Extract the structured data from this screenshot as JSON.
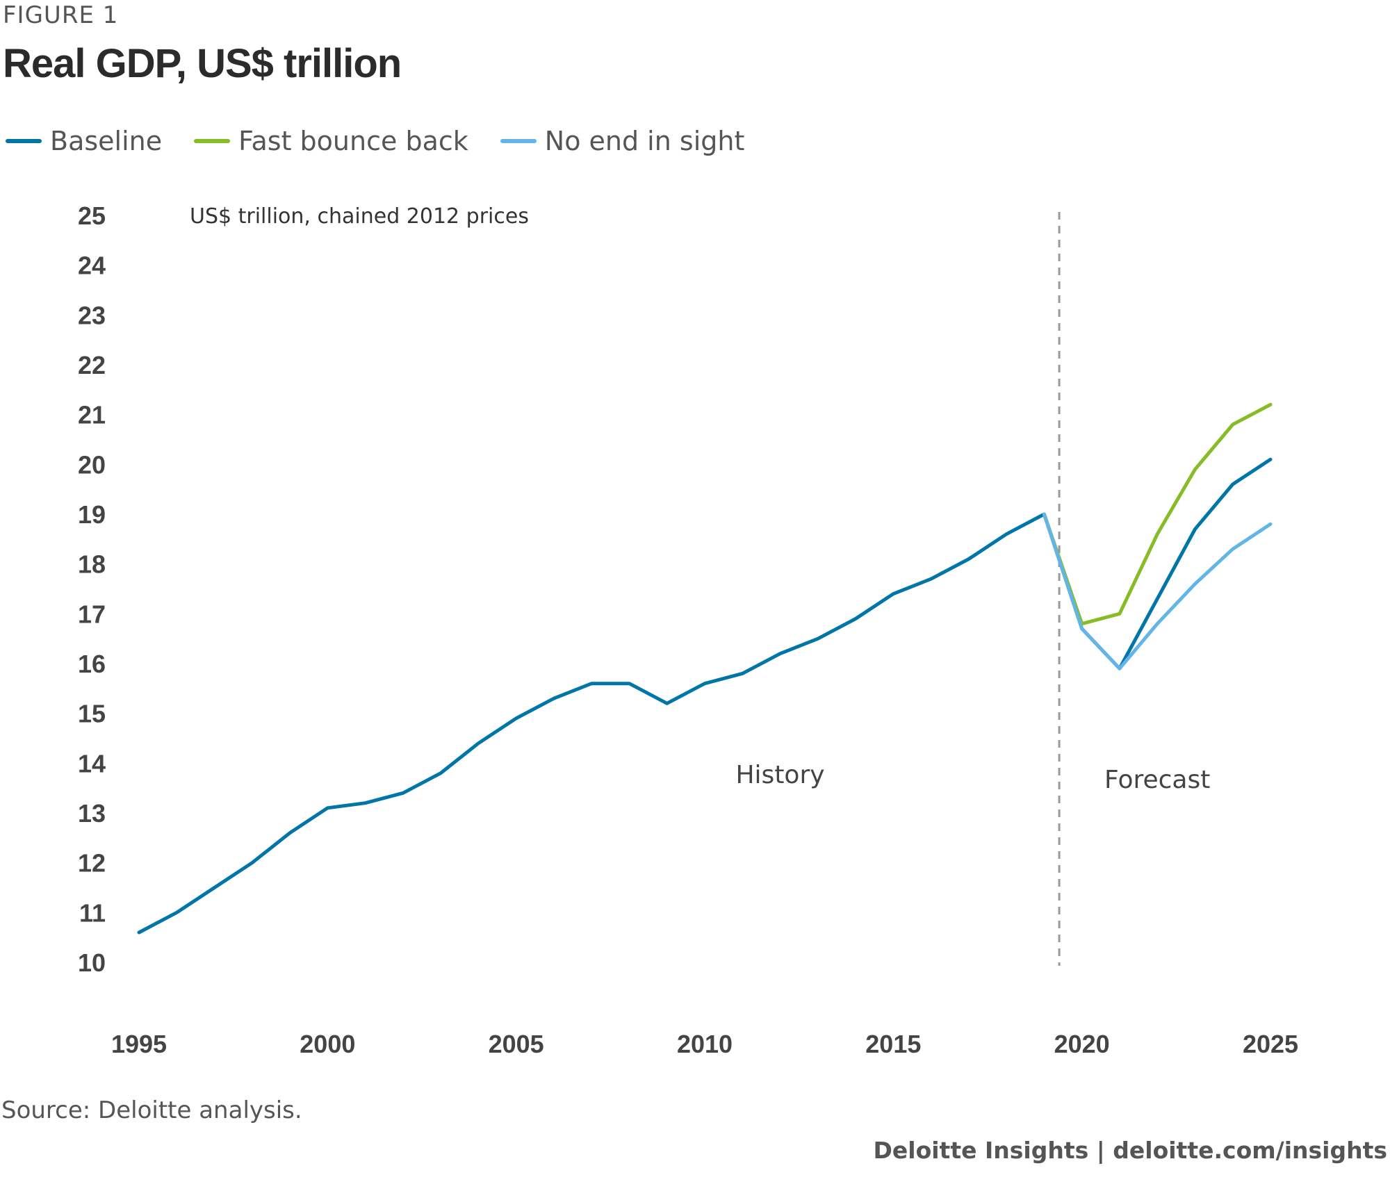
{
  "figure_label": "FIGURE 1",
  "chart_data": {
    "type": "line",
    "title": "Real GDP, US$ trillion",
    "ylabel": "US$ trillion, chained 2012 prices",
    "xlabel": "",
    "ylim": [
      10,
      25
    ],
    "xlim": [
      1995,
      2025
    ],
    "y_ticks": [
      "10",
      "11",
      "12",
      "13",
      "14",
      "15",
      "16",
      "17",
      "18",
      "19",
      "20",
      "21",
      "22",
      "23",
      "24",
      "25"
    ],
    "x_ticks": [
      "1995",
      "2000",
      "2005",
      "2010",
      "2015",
      "2020",
      "2025"
    ],
    "grid": false,
    "legend_position": "top-left",
    "series": [
      {
        "name": "Baseline",
        "color": "#0076A8",
        "x": [
          1995,
          1996,
          1997,
          1998,
          1999,
          2000,
          2001,
          2002,
          2003,
          2004,
          2005,
          2006,
          2007,
          2008,
          2009,
          2010,
          2011,
          2012,
          2013,
          2014,
          2015,
          2016,
          2017,
          2018,
          2019,
          2020,
          2021,
          2022,
          2023,
          2024,
          2025
        ],
        "values": [
          10.6,
          11.0,
          11.5,
          12.0,
          12.6,
          13.1,
          13.2,
          13.4,
          13.8,
          14.4,
          14.9,
          15.3,
          15.6,
          15.6,
          15.2,
          15.6,
          15.8,
          16.2,
          16.5,
          16.9,
          17.4,
          17.7,
          18.1,
          18.6,
          19.0,
          16.7,
          15.9,
          17.3,
          18.7,
          19.6,
          20.1
        ]
      },
      {
        "name": "Fast bounce back",
        "color": "#86BC25",
        "x": [
          2019,
          2020,
          2021,
          2022,
          2023,
          2024,
          2025
        ],
        "values": [
          19.0,
          16.8,
          17.0,
          18.6,
          19.9,
          20.8,
          21.2
        ]
      },
      {
        "name": "No end in sight",
        "color": "#62B5E5",
        "x": [
          2019,
          2020,
          2021,
          2022,
          2023,
          2024,
          2025
        ],
        "values": [
          19.0,
          16.7,
          15.9,
          16.8,
          17.6,
          18.3,
          18.8
        ]
      }
    ],
    "divider_x": 2019.4,
    "annotations": [
      {
        "text": "History",
        "x": 2012.0,
        "y": 13.6
      },
      {
        "text": "Forecast",
        "x": 2022.0,
        "y": 13.5
      }
    ]
  },
  "source": "Source: Deloitte analysis.",
  "footer": "Deloitte Insights | deloitte.com/insights"
}
